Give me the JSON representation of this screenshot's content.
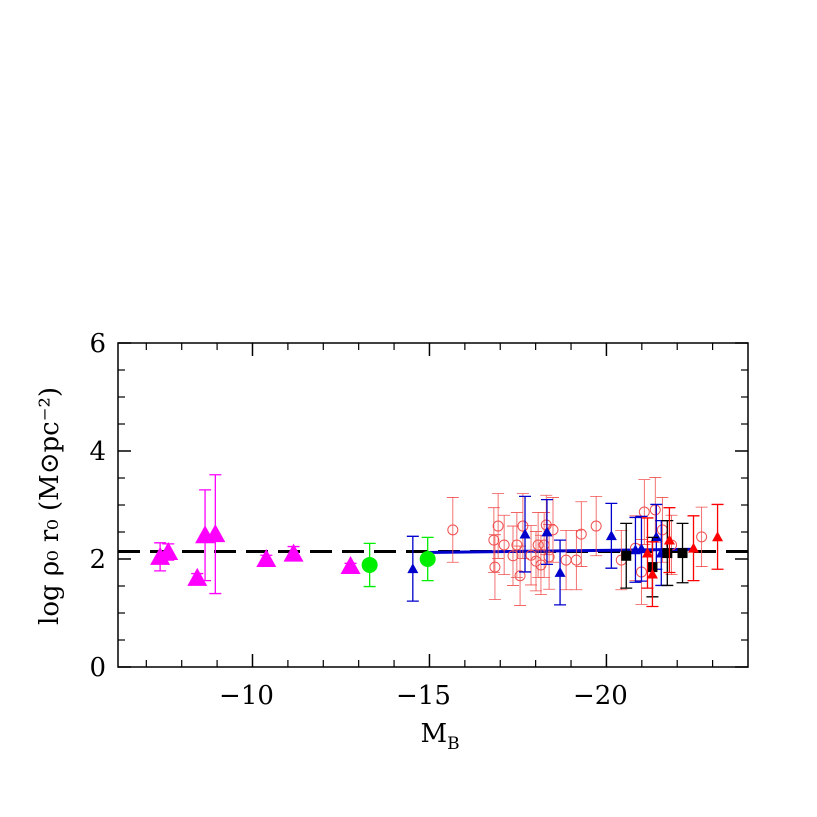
{
  "chart_data": {
    "type": "scatter",
    "xlabel": [
      "M",
      "B"
    ],
    "ylabel": "log ρ₀ r₀ (M⊙pc⁻²)",
    "xlim": [
      -6.2,
      -24.0
    ],
    "ylim": [
      0,
      6
    ],
    "xticks": [
      {
        "value": -10,
        "label": "−10"
      },
      {
        "value": -15,
        "label": "−15"
      },
      {
        "value": -20,
        "label": "−20"
      }
    ],
    "yticks": [
      0,
      2,
      4,
      6
    ],
    "xminor": [
      -7,
      -8,
      -9,
      -11,
      -12,
      -13,
      -14,
      -16,
      -17,
      -18,
      -19,
      -21,
      -22,
      -23
    ],
    "yminor": [
      0.5,
      1,
      1.5,
      2.5,
      3,
      3.5,
      4.5,
      5,
      5.5
    ],
    "series": [
      {
        "color": "#ff00ff",
        "marker": "triangle-large",
        "x": [
          -7.39,
          -7.62,
          -8.44,
          -8.66,
          -8.95,
          -10.39,
          -11.16,
          -12.77
        ],
        "values": [
          2.04,
          2.13,
          1.65,
          2.44,
          2.46,
          2.0,
          2.1,
          1.87
        ],
        "errors": [
          0.26,
          0.15,
          0.08,
          0.84,
          1.1,
          0.07,
          0.13,
          0.05
        ]
      },
      {
        "color": "#00ee00",
        "marker": "circle-large",
        "x": [
          -13.31,
          -14.95
        ],
        "values": [
          1.89,
          2.0
        ],
        "errors": [
          0.4,
          0.4
        ]
      },
      {
        "color": "#f05050",
        "marker": "circle-open",
        "x": [
          -15.66,
          -16.82,
          -16.85,
          -16.94,
          -17.11,
          -17.36,
          -17.47,
          -17.56,
          -17.64,
          -17.87,
          -18.01,
          -18.07,
          -18.15,
          -18.24,
          -18.3,
          -18.38,
          -18.49,
          -18.86,
          -19.15,
          -19.29,
          -19.71,
          -20.42,
          -20.82,
          -20.99,
          -21.07,
          -21.38,
          -21.58,
          -21.84,
          -22.69
        ],
        "values": [
          2.54,
          2.35,
          1.85,
          2.61,
          2.26,
          2.06,
          2.26,
          1.69,
          2.61,
          2.07,
          1.96,
          2.26,
          1.89,
          2.26,
          2.63,
          2.04,
          2.54,
          1.98,
          1.98,
          2.46,
          2.61,
          1.98,
          2.2,
          1.76,
          2.87,
          2.91,
          2.54,
          2.26,
          2.41
        ],
        "errors": [
          0.6,
          0.6,
          0.6,
          0.6,
          0.55,
          0.55,
          0.6,
          0.55,
          0.6,
          0.55,
          0.55,
          0.6,
          0.55,
          0.6,
          0.55,
          0.6,
          0.6,
          0.55,
          0.55,
          0.6,
          0.55,
          0.55,
          0.6,
          0.6,
          0.6,
          0.6,
          0.6,
          0.55,
          0.55
        ]
      },
      {
        "color": "#0000cc",
        "marker": "triangle-small",
        "x": [
          -14.53,
          -17.7,
          -18.32,
          -18.69,
          -20.14,
          -20.82,
          -20.99,
          -21.41,
          -21.55
        ],
        "values": [
          1.82,
          2.46,
          2.5,
          1.75,
          2.43,
          2.17,
          2.19,
          2.41,
          2.11
        ],
        "errors": [
          0.6,
          0.7,
          0.6,
          0.6,
          0.6,
          0.6,
          0.6,
          0.6,
          0.6
        ]
      },
      {
        "color": "#000000",
        "marker": "square",
        "x": [
          -20.56,
          -21.3,
          -21.72,
          -22.15
        ],
        "values": [
          2.06,
          1.85,
          2.11,
          2.11
        ],
        "errors": [
          0.6,
          0.55,
          0.6,
          0.55
        ]
      },
      {
        "color": "#ff0000",
        "marker": "triangle-small",
        "x": [
          -21.16,
          -21.3,
          -21.78,
          -22.46,
          -23.14
        ],
        "values": [
          2.11,
          1.72,
          2.35,
          2.2,
          2.41
        ],
        "errors": [
          0.65,
          0.6,
          0.6,
          0.6,
          0.6
        ]
      }
    ],
    "lines": [
      {
        "color": "#000000",
        "dash": true,
        "x": [
          -6.2,
          -24.0
        ],
        "values": [
          2.14,
          2.14
        ]
      },
      {
        "color": "#0000cc",
        "dash": false,
        "x": [
          -14.9,
          -22.46
        ],
        "values": [
          2.12,
          2.18
        ]
      }
    ]
  }
}
